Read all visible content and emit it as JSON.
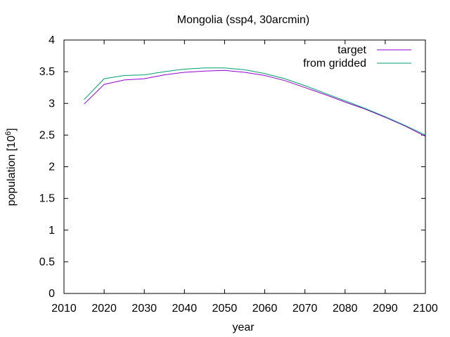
{
  "chart_data": {
    "type": "line",
    "title": "Mongolia (ssp4, 30arcmin)",
    "xlabel": "year",
    "ylabel": "population [10",
    "ylabel_exponent": "6",
    "ylabel_suffix": "]",
    "xlim": [
      2010,
      2100
    ],
    "ylim": [
      0,
      4
    ],
    "x_ticks": [
      "2010",
      "2020",
      "2030",
      "2040",
      "2050",
      "2060",
      "2070",
      "2080",
      "2090",
      "2100"
    ],
    "y_ticks": [
      "0",
      "0.5",
      "1",
      "1.5",
      "2",
      "2.5",
      "3",
      "3.5",
      "4"
    ],
    "grid": false,
    "legend_position": "top-right",
    "series": [
      {
        "name": "target",
        "color": "#9400d3",
        "x": [
          2015,
          2020,
          2025,
          2030,
          2035,
          2040,
          2045,
          2050,
          2055,
          2060,
          2065,
          2070,
          2075,
          2080,
          2085,
          2090,
          2095,
          2100
        ],
        "y": [
          2.99,
          3.3,
          3.37,
          3.39,
          3.45,
          3.49,
          3.51,
          3.52,
          3.49,
          3.44,
          3.36,
          3.25,
          3.14,
          3.02,
          2.91,
          2.78,
          2.64,
          2.48
        ]
      },
      {
        "name": "from gridded",
        "color": "#009e73",
        "x": [
          2015,
          2020,
          2025,
          2030,
          2035,
          2040,
          2045,
          2050,
          2055,
          2060,
          2065,
          2070,
          2075,
          2080,
          2085,
          2090,
          2095,
          2100
        ],
        "y": [
          3.06,
          3.39,
          3.44,
          3.45,
          3.5,
          3.54,
          3.56,
          3.56,
          3.53,
          3.47,
          3.39,
          3.28,
          3.16,
          3.04,
          2.92,
          2.79,
          2.65,
          2.5
        ]
      }
    ]
  }
}
